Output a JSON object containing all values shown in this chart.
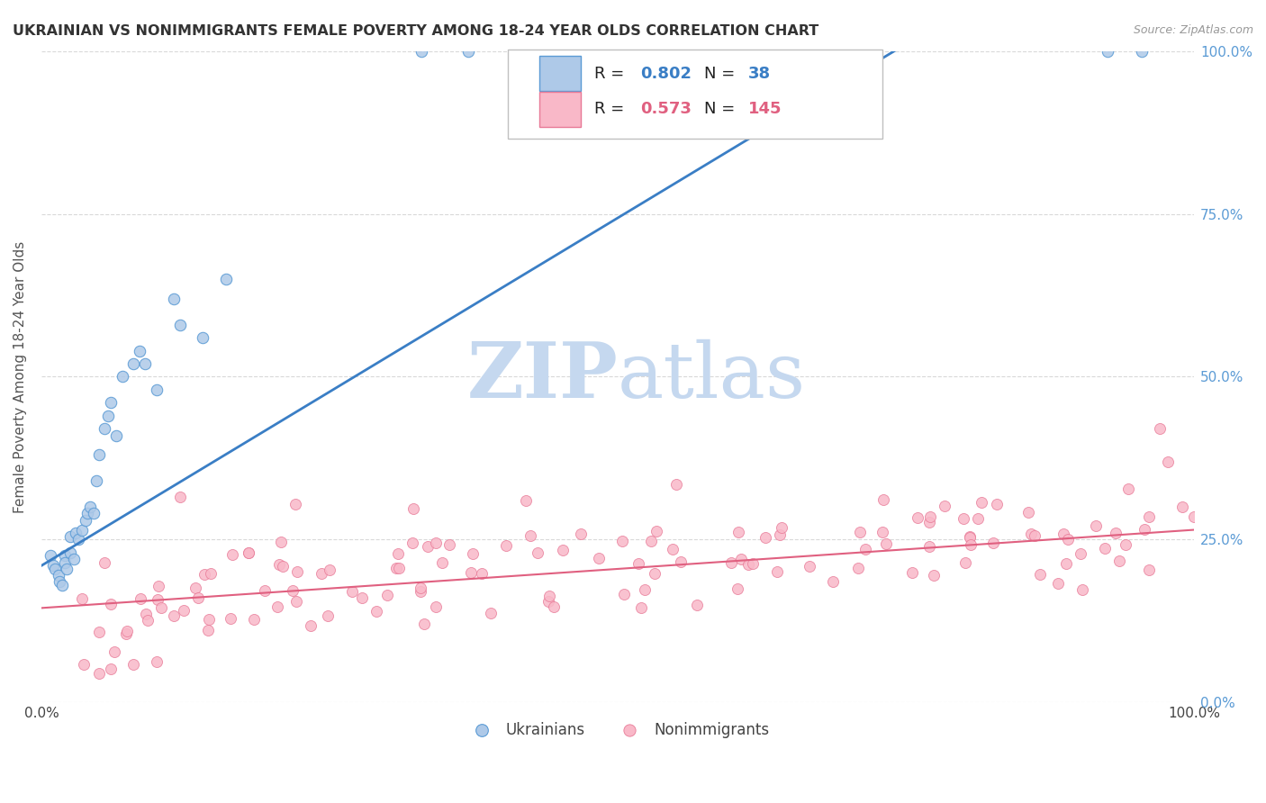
{
  "title": "UKRAINIAN VS NONIMMIGRANTS FEMALE POVERTY AMONG 18-24 YEAR OLDS CORRELATION CHART",
  "source": "Source: ZipAtlas.com",
  "ylabel": "Female Poverty Among 18-24 Year Olds",
  "xlim": [
    0,
    1.0
  ],
  "ylim": [
    0,
    1.0
  ],
  "xtick_positions": [
    0,
    0.25,
    0.5,
    0.75,
    1.0
  ],
  "xtick_labels": [
    "0.0%",
    "",
    "",
    "",
    "100.0%"
  ],
  "ytick_positions": [
    0.0,
    0.25,
    0.5,
    0.75,
    1.0
  ],
  "ytick_right_labels": [
    "0.0%",
    "25.0%",
    "50.0%",
    "75.0%",
    "100.0%"
  ],
  "watermark_zip": "ZIP",
  "watermark_atlas": "atlas",
  "legend_r1": "0.802",
  "legend_n1": "38",
  "legend_r2": "0.573",
  "legend_n2": "145",
  "ukr_color": "#aec9e8",
  "ukr_edge_color": "#5b9bd5",
  "nim_color": "#f9b8c8",
  "nim_edge_color": "#e87a97",
  "ukr_line_color": "#3a7ec5",
  "nim_line_color": "#e06080",
  "right_axis_color": "#5b9bd5",
  "grid_color": "#d0d0d0",
  "title_color": "#333333",
  "source_color": "#999999",
  "background": "#ffffff",
  "ukr_line_x0": 0.0,
  "ukr_line_y0": 0.21,
  "ukr_line_x1": 0.74,
  "ukr_line_y1": 1.0,
  "nim_line_x0": 0.0,
  "nim_line_y0": 0.145,
  "nim_line_x1": 1.0,
  "nim_line_y1": 0.265
}
